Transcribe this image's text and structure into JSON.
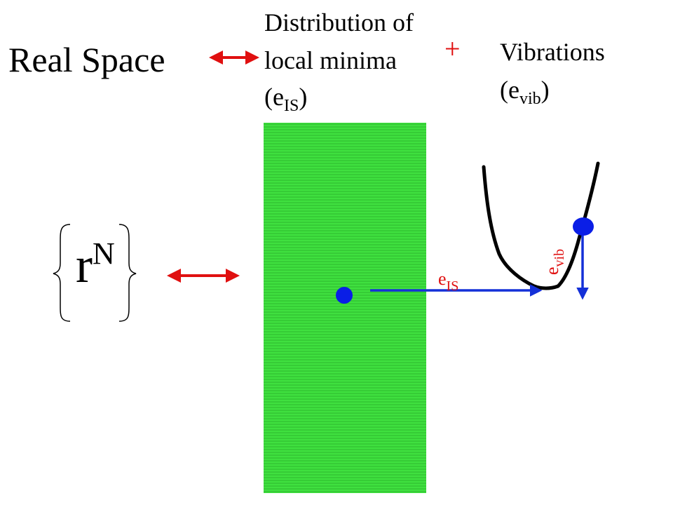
{
  "labels": {
    "real_space": "Real Space",
    "distribution_line1": "Distribution of",
    "distribution_line2": "local minima",
    "distribution_line3_open": "(e",
    "distribution_line3_sub": "IS",
    "distribution_line3_close": ")",
    "plus": "+",
    "vibrations_line1": "Vibrations",
    "vibrations_line2_open": "(e",
    "vibrations_line2_sub": "vib",
    "vibrations_line2_close": ")",
    "rn_base": "r",
    "rn_sup": "N",
    "eis_base": "e",
    "eis_sub": "IS",
    "evib_base": "e",
    "evib_sub": "vib"
  },
  "colors": {
    "arrow_red": "#e01010",
    "arrow_blue": "#1430d8",
    "dot_blue": "#0a1ee6",
    "band_green": "#3fe03f",
    "band_line": "#2cb82c"
  }
}
